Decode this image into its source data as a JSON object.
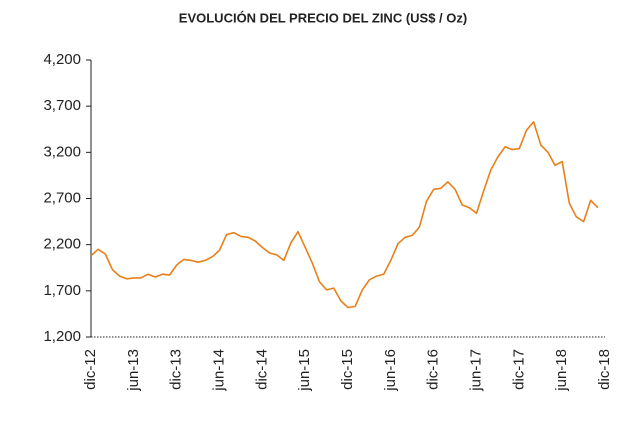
{
  "chart_data": {
    "type": "line",
    "title": "EVOLUCIÓN DEL PRECIO DEL ZINC (US$ / Oz)",
    "categories": [
      "dic-12",
      null,
      null,
      null,
      null,
      null,
      "jun-13",
      null,
      null,
      null,
      null,
      null,
      "dic-13",
      null,
      null,
      null,
      null,
      null,
      "jun-14",
      null,
      null,
      null,
      null,
      null,
      "dic-14",
      null,
      null,
      null,
      null,
      null,
      "jun-15",
      null,
      null,
      null,
      null,
      null,
      "dic-15",
      null,
      null,
      null,
      null,
      null,
      "jun-16",
      null,
      null,
      null,
      null,
      null,
      "dic-16",
      null,
      null,
      null,
      null,
      null,
      "jun-17",
      null,
      null,
      null,
      null,
      null,
      "dic-17",
      null,
      null,
      null,
      null,
      null,
      "jun-18",
      null,
      null,
      null,
      null,
      null,
      "dic-18"
    ],
    "series": [
      {
        "name": "Zinc",
        "color": "#e8801a",
        "values": [
          2080,
          2150,
          2100,
          1930,
          1860,
          1830,
          1840,
          1840,
          1880,
          1850,
          1880,
          1870,
          1980,
          2040,
          2030,
          2010,
          2030,
          2070,
          2140,
          2310,
          2330,
          2290,
          2280,
          2240,
          2170,
          2110,
          2090,
          2030,
          2220,
          2340,
          2170,
          2000,
          1800,
          1710,
          1730,
          1590,
          1520,
          1530,
          1710,
          1820,
          1860,
          1880,
          2030,
          2210,
          2280,
          2300,
          2390,
          2670,
          2800,
          2810,
          2880,
          2800,
          2630,
          2600,
          2540,
          2780,
          3010,
          3150,
          3260,
          3230,
          3240,
          3440,
          3530,
          3280,
          3200,
          3060,
          3100,
          2650,
          2500,
          2450,
          2680,
          2600,
          null
        ]
      }
    ],
    "ylim": [
      1200,
      4200
    ],
    "yticks": [
      {
        "value": 1200,
        "label": "1,200"
      },
      {
        "value": 1700,
        "label": "1,700"
      },
      {
        "value": 2200,
        "label": "2,200"
      },
      {
        "value": 2700,
        "label": "2,700"
      },
      {
        "value": 3200,
        "label": "3,200"
      },
      {
        "value": 3700,
        "label": "3,700"
      },
      {
        "value": 4200,
        "label": "4,200"
      }
    ],
    "grid": false,
    "legend": false
  }
}
